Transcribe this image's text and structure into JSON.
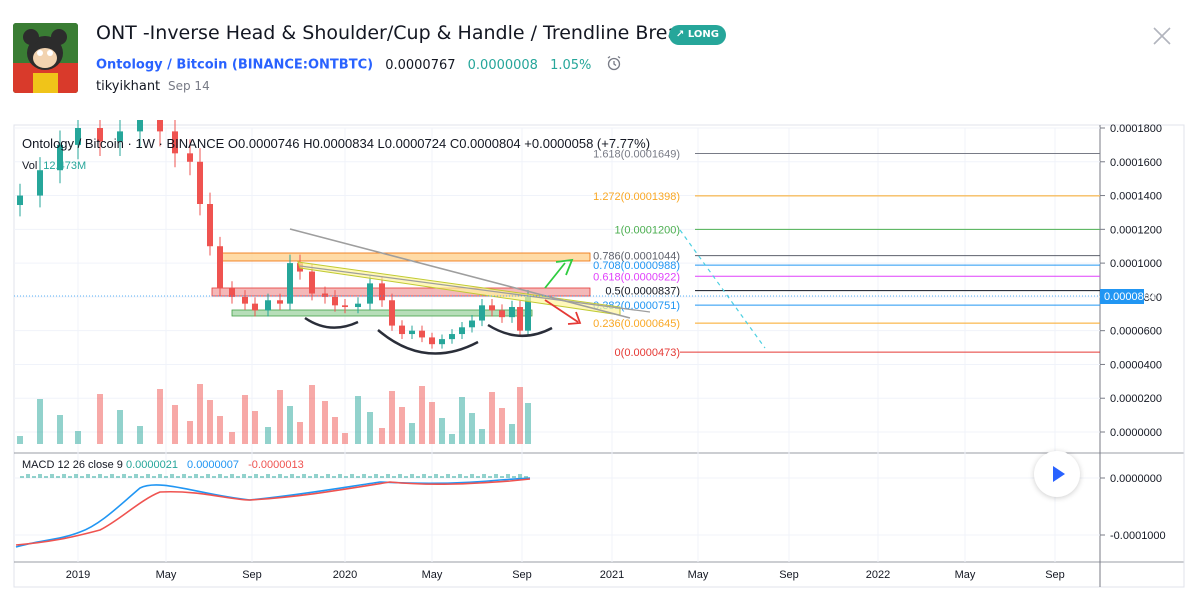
{
  "header": {
    "title": "ONT -Inverse Head & Shoulder/Cup & Handle / Trendline Breakout",
    "badge": "LONG",
    "symbol_link": "Ontology / Bitcoin (BINANCE:ONTBTC)",
    "price": "0.0000767",
    "change_abs": "0.0000008",
    "change_pct": "1.05%",
    "author": "tikyikhant",
    "date": "Sep 14",
    "avatar_icon": "avatar-cartoon"
  },
  "legend": {
    "symbol": "Ontology / Bitcoin · 1W · BINANCE",
    "ohlc": "O0.0000746 H0.0000834 L0.0000724 C0.0000804 +0.0000058 (+7.77%)",
    "vol_label": "Vol",
    "vol_value": "12.473M",
    "macd_label": "MACD 12 26 close 9",
    "macd_hist": "0.0000021",
    "macd_line": "0.0000007",
    "macd_signal": "-0.0000013"
  },
  "colors": {
    "up": "#26a69a",
    "down": "#ef5350",
    "macd": "#2196f3",
    "signal": "#ef5350",
    "accent": "#2962ff"
  },
  "chart_data": {
    "type": "candlestick",
    "symbol": "ONTBTC",
    "exchange": "BINANCE",
    "interval": "1W",
    "last_price": "0.0000804",
    "ylim": [
      0.0,
      0.00018
    ],
    "y_ticks": [
      "0.0001800",
      "0.0001600",
      "0.0001400",
      "0.0001200",
      "0.0001000",
      "0.0000800",
      "0.0000600",
      "0.0000400",
      "0.0000200",
      "0.0000000"
    ],
    "x_ticks": [
      "2019",
      "May",
      "Sep",
      "2020",
      "May",
      "Sep",
      "2021",
      "May",
      "Sep",
      "2022",
      "May",
      "Sep"
    ],
    "fib_levels": [
      {
        "ratio": "1.618",
        "price": 0.0001649,
        "label": "1.618(0.0001649)",
        "color": "#787b86"
      },
      {
        "ratio": "1.272",
        "price": 0.0001398,
        "label": "1.272(0.0001398)",
        "color": "#f9a825"
      },
      {
        "ratio": "1",
        "price": 0.00012,
        "label": "1(0.0001200)",
        "color": "#4caf50"
      },
      {
        "ratio": "0.786",
        "price": 0.0001044,
        "label": "0.786(0.0001044)",
        "color": "#5d606b"
      },
      {
        "ratio": "0.708",
        "price": 9.88e-05,
        "label": "0.708(0.0000988)",
        "color": "#2196f3"
      },
      {
        "ratio": "0.618",
        "price": 9.22e-05,
        "label": "0.618(0.0000922)",
        "color": "#e040fb"
      },
      {
        "ratio": "0.5",
        "price": 8.37e-05,
        "label": "0.5(0.0000837)",
        "color": "#131722"
      },
      {
        "ratio": "0.382",
        "price": 7.51e-05,
        "label": "0.382(0.0000751)",
        "color": "#2196f3"
      },
      {
        "ratio": "0.236",
        "price": 6.45e-05,
        "label": "0.236(0.0000645)",
        "color": "#f9a825"
      },
      {
        "ratio": "0",
        "price": 4.73e-05,
        "label": "0(0.0000473)",
        "color": "#e53935"
      }
    ],
    "macd_ticks": [
      "0.0000000",
      "-0.0001000"
    ],
    "annotations": [
      "Inverse Head & Shoulder",
      "Cup & Handle",
      "Trendline Breakout"
    ]
  }
}
